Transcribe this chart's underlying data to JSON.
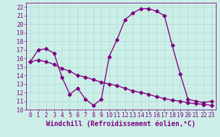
{
  "title": "",
  "xlabel": "Windchill (Refroidissement éolien,°C)",
  "bg_color": "#cceee8",
  "line_color": "#800080",
  "grid_color": "#aaddcc",
  "ylim": [
    10,
    22.5
  ],
  "xlim": [
    -0.5,
    23.5
  ],
  "yticks": [
    10,
    11,
    12,
    13,
    14,
    15,
    16,
    17,
    18,
    19,
    20,
    21,
    22
  ],
  "xticks": [
    0,
    1,
    2,
    3,
    4,
    5,
    6,
    7,
    8,
    9,
    10,
    11,
    12,
    13,
    14,
    15,
    16,
    17,
    18,
    19,
    20,
    21,
    22,
    23
  ],
  "temp_data": [
    15.6,
    17.0,
    17.1,
    16.6,
    13.8,
    11.8,
    12.5,
    11.2,
    10.5,
    11.2,
    16.2,
    18.2,
    20.5,
    21.3,
    21.8,
    21.8,
    21.5,
    21.0,
    17.5,
    14.2,
    11.2,
    11.0,
    10.8,
    11.0
  ],
  "windchill_data": [
    15.6,
    15.8,
    15.6,
    15.3,
    14.8,
    14.5,
    14.0,
    13.8,
    13.5,
    13.2,
    13.0,
    12.8,
    12.5,
    12.2,
    12.0,
    11.8,
    11.5,
    11.3,
    11.1,
    11.0,
    10.8,
    10.7,
    10.6,
    10.5
  ],
  "marker": "D",
  "marker_size": 2.5,
  "line_width": 1.0,
  "tick_fontsize": 6,
  "xlabel_fontsize": 7
}
